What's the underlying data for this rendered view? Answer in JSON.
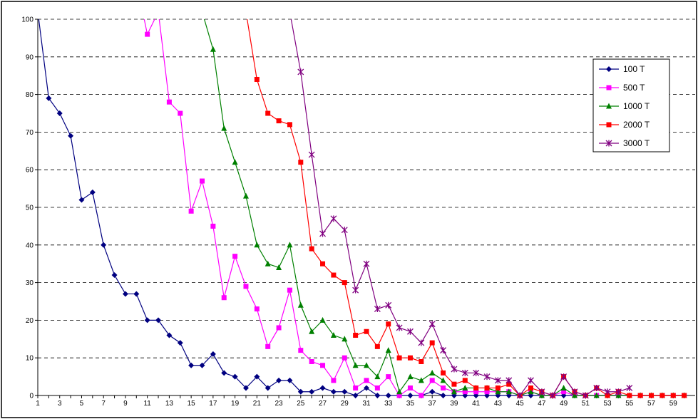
{
  "chart_data": {
    "type": "line",
    "title": "",
    "xlabel": "",
    "ylabel": "",
    "ylim": [
      0,
      100
    ],
    "y_ticks": [
      0,
      10,
      20,
      30,
      40,
      50,
      60,
      70,
      80,
      90,
      100
    ],
    "x_tick_labels": [
      "1",
      "3",
      "5",
      "7",
      "9",
      "11",
      "13",
      "15",
      "17",
      "19",
      "21",
      "23",
      "25",
      "27",
      "29",
      "31",
      "33",
      "35",
      "37",
      "39",
      "41",
      "43",
      "45",
      "47",
      "49",
      "51",
      "53",
      "55",
      "57",
      "59"
    ],
    "grid": "horizontal dashed",
    "legend_position": "right",
    "series": [
      {
        "name": "100 T",
        "color": "#000080",
        "marker": "diamond",
        "x": [
          1,
          2,
          3,
          4,
          5,
          6,
          7,
          8,
          9,
          10,
          11,
          12,
          13,
          14,
          15,
          16,
          17,
          18,
          19,
          20,
          21,
          22,
          23,
          24,
          25,
          26,
          27,
          28,
          29,
          30,
          31,
          32,
          33,
          34,
          35,
          36,
          37,
          38,
          39,
          40,
          41,
          42,
          43,
          44,
          45,
          46,
          47,
          48,
          49,
          50,
          51,
          52,
          53,
          54,
          55,
          56,
          57,
          58,
          59,
          60
        ],
        "values": [
          102,
          79,
          75,
          69,
          52,
          54,
          40,
          32,
          27,
          27,
          20,
          20,
          16,
          14,
          8,
          8,
          11,
          6,
          5,
          2,
          5,
          2,
          4,
          4,
          1,
          1,
          2,
          1,
          1,
          0,
          2,
          0,
          0,
          0,
          0,
          0,
          1,
          0,
          0,
          0,
          0,
          0,
          0,
          0,
          0,
          0,
          0,
          0,
          0,
          0,
          0,
          0,
          0,
          0,
          0,
          0,
          0,
          0,
          0,
          0
        ]
      },
      {
        "name": "500 T",
        "color": "#ff00ff",
        "marker": "square",
        "x": [
          10,
          11,
          12,
          13,
          14,
          15,
          16,
          17,
          18,
          19,
          20,
          21,
          22,
          23,
          24,
          25,
          26,
          27,
          28,
          29,
          30,
          31,
          32,
          33,
          34,
          35,
          36,
          37,
          38,
          39,
          40,
          41,
          42,
          43,
          44,
          45,
          46,
          47,
          48,
          49,
          50,
          51,
          52,
          53,
          54,
          55,
          56,
          57,
          58,
          59,
          60
        ],
        "values": [
          110,
          96,
          102,
          78,
          75,
          49,
          57,
          45,
          26,
          37,
          29,
          23,
          13,
          18,
          28,
          12,
          9,
          8,
          4,
          10,
          2,
          4,
          2,
          5,
          0,
          2,
          0,
          4,
          2,
          1,
          1,
          1,
          1,
          1,
          1,
          0,
          1,
          0,
          0,
          1,
          0,
          0,
          0,
          0,
          0,
          0,
          0,
          0,
          0,
          0,
          0
        ]
      },
      {
        "name": "1000 T",
        "color": "#008000",
        "marker": "triangle",
        "x": [
          15,
          16,
          17,
          18,
          19,
          20,
          21,
          22,
          23,
          24,
          25,
          26,
          27,
          28,
          29,
          30,
          31,
          32,
          33,
          34,
          35,
          36,
          37,
          38,
          39,
          40,
          41,
          42,
          43,
          44,
          45,
          46,
          47,
          48,
          49,
          50,
          51,
          52,
          53,
          54,
          55,
          56,
          57,
          58,
          59,
          60
        ],
        "values": [
          110,
          102,
          92,
          71,
          62,
          53,
          40,
          35,
          34,
          40,
          24,
          17,
          20,
          16,
          15,
          8,
          8,
          5,
          12,
          1,
          5,
          4,
          6,
          4,
          1,
          2,
          2,
          2,
          1,
          1,
          0,
          1,
          0,
          0,
          2,
          0,
          0,
          0,
          0,
          0,
          0,
          0,
          0,
          0,
          0,
          0
        ]
      },
      {
        "name": "2000 T",
        "color": "#ff0000",
        "marker": "square",
        "x": [
          20,
          21,
          22,
          23,
          24,
          25,
          26,
          27,
          28,
          29,
          30,
          31,
          32,
          33,
          34,
          35,
          36,
          37,
          38,
          39,
          40,
          41,
          42,
          43,
          44,
          45,
          46,
          47,
          48,
          49,
          50,
          51,
          52,
          53,
          54,
          55,
          56,
          57,
          58,
          59,
          60
        ],
        "values": [
          102,
          84,
          75,
          73,
          72,
          62,
          39,
          35,
          32,
          30,
          16,
          17,
          13,
          19,
          10,
          10,
          9,
          14,
          6,
          3,
          4,
          2,
          2,
          2,
          3,
          0,
          2,
          1,
          0,
          5,
          1,
          0,
          2,
          0,
          1,
          0,
          0,
          0,
          0,
          0,
          0
        ]
      },
      {
        "name": "3000 T",
        "color": "#800080",
        "marker": "asterisk",
        "x": [
          24,
          25,
          26,
          27,
          28,
          29,
          30,
          31,
          32,
          33,
          34,
          35,
          36,
          37,
          38,
          39,
          40,
          41,
          42,
          43,
          44,
          45,
          46,
          47,
          48,
          49,
          50,
          51,
          52,
          53,
          54,
          55
        ],
        "values": [
          102,
          86,
          64,
          43,
          47,
          44,
          28,
          35,
          23,
          24,
          18,
          17,
          14,
          19,
          12,
          7,
          6,
          6,
          5,
          4,
          4,
          0,
          4,
          1,
          0,
          5,
          1,
          0,
          2,
          1,
          1,
          2
        ]
      }
    ]
  }
}
